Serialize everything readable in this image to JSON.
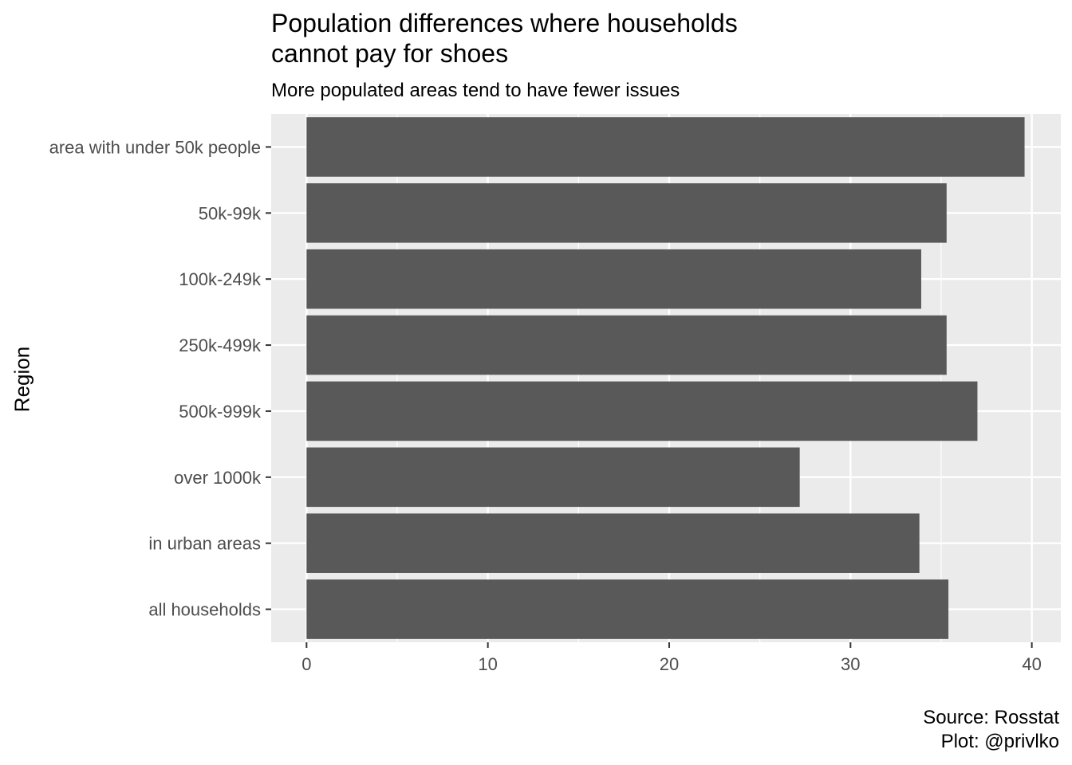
{
  "chart_data": {
    "type": "bar",
    "orientation": "horizontal",
    "title": "Population differences where households\ncannot pay for shoes",
    "subtitle": "More populated areas tend to have fewer issues",
    "xlabel": "",
    "ylabel": "Region",
    "categories": [
      "area with under 50k people",
      "50k-99k",
      "100k-249k",
      "250k-499k",
      "500k-999k",
      "over 1000k",
      "in urban areas",
      "all households"
    ],
    "values": [
      39.6,
      35.3,
      33.9,
      35.3,
      37.0,
      27.2,
      33.8,
      35.4
    ],
    "xlim": [
      -1.95,
      41.6
    ],
    "xticks": [
      0,
      10,
      20,
      30,
      40
    ],
    "grid": true,
    "bar_color": "#595959",
    "panel_color": "#ebebeb",
    "gridline_color": "#ffffff"
  },
  "caption": {
    "line1": "Source: Rosstat",
    "line2": "Plot: @privlko"
  }
}
